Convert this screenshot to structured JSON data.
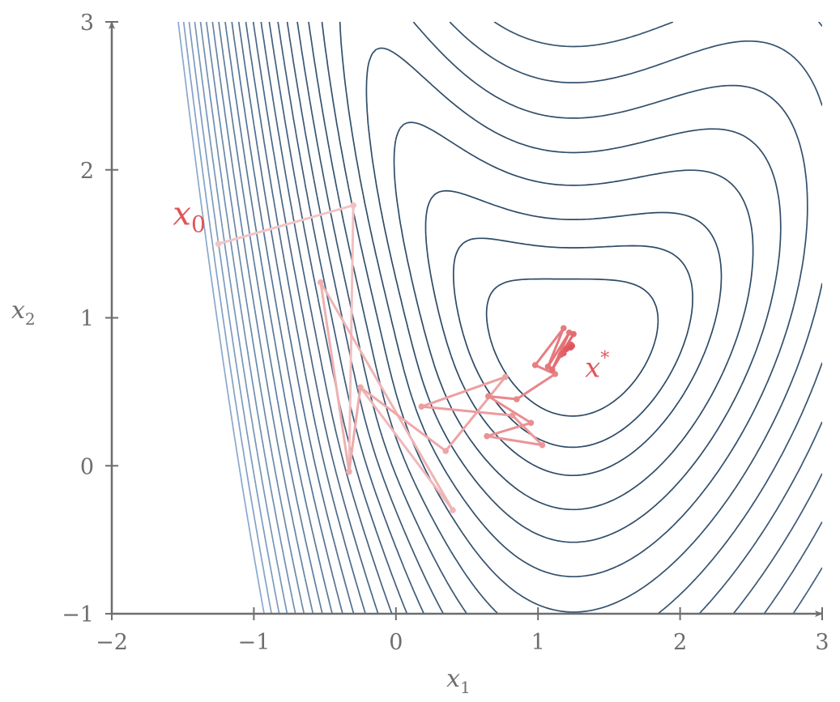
{
  "chart_data": {
    "type": "line",
    "title": "",
    "xlabel": "x",
    "xlabel_sub": "1",
    "ylabel": "x",
    "ylabel_sub": "2",
    "xlim": [
      -2,
      3
    ],
    "ylim": [
      -1,
      3
    ],
    "xticks": [
      {
        "v": -2,
        "label": "−2"
      },
      {
        "v": -1,
        "label": "−1"
      },
      {
        "v": 0,
        "label": "0"
      },
      {
        "v": 1,
        "label": "1"
      },
      {
        "v": 2,
        "label": "2"
      },
      {
        "v": 3,
        "label": "3"
      }
    ],
    "yticks": [
      {
        "v": -1,
        "label": "−1"
      },
      {
        "v": 0,
        "label": "0"
      },
      {
        "v": 1,
        "label": "1"
      },
      {
        "v": 2,
        "label": "2"
      },
      {
        "v": 3,
        "label": "3"
      }
    ],
    "grid": false,
    "contours": {
      "description_free": true,
      "levels": [
        1.6,
        3.4,
        5.6,
        9,
        13,
        18,
        24,
        31,
        39,
        48,
        58,
        69,
        81,
        94,
        108,
        123,
        139,
        156,
        174,
        193,
        213,
        234,
        256,
        279,
        303,
        328
      ],
      "color_low": "#2d4a66",
      "color_high": "#8aa8cc",
      "minimum": [
        1.25,
        0.8
      ]
    },
    "trajectory": {
      "color_start": "#f2c4c4",
      "color_end": "#e0555b",
      "points": [
        [
          -1.25,
          1.5
        ],
        [
          -0.3,
          1.76
        ],
        [
          -0.33,
          -0.04
        ],
        [
          -0.25,
          0.53
        ],
        [
          0.4,
          -0.3
        ],
        [
          -0.53,
          1.24
        ],
        [
          -0.33,
          -0.04
        ],
        [
          -0.25,
          0.53
        ],
        [
          0.35,
          0.1
        ],
        [
          0.77,
          0.6
        ],
        [
          0.18,
          0.4
        ],
        [
          0.82,
          0.34
        ],
        [
          1.03,
          0.14
        ],
        [
          0.64,
          0.2
        ],
        [
          0.95,
          0.29
        ],
        [
          0.65,
          0.47
        ],
        [
          0.85,
          0.45
        ],
        [
          1.12,
          0.62
        ],
        [
          0.98,
          0.68
        ],
        [
          1.18,
          0.93
        ],
        [
          1.07,
          0.67
        ],
        [
          1.22,
          0.9
        ],
        [
          1.1,
          0.65
        ],
        [
          1.25,
          0.89
        ],
        [
          1.16,
          0.75
        ],
        [
          1.23,
          0.82
        ],
        [
          1.18,
          0.76
        ],
        [
          1.24,
          0.81
        ],
        [
          1.2,
          0.79
        ],
        [
          1.23,
          0.8
        ]
      ],
      "start_point": [
        -1.25,
        1.5
      ],
      "end_point": [
        1.23,
        0.8
      ]
    },
    "annotations": [
      {
        "text": "x",
        "sub": "0",
        "x": -1.57,
        "y": 1.63,
        "color": "#e0555b"
      },
      {
        "text": "x",
        "sup": "*",
        "x": 1.33,
        "y": 0.6,
        "color": "#e0555b"
      }
    ]
  }
}
